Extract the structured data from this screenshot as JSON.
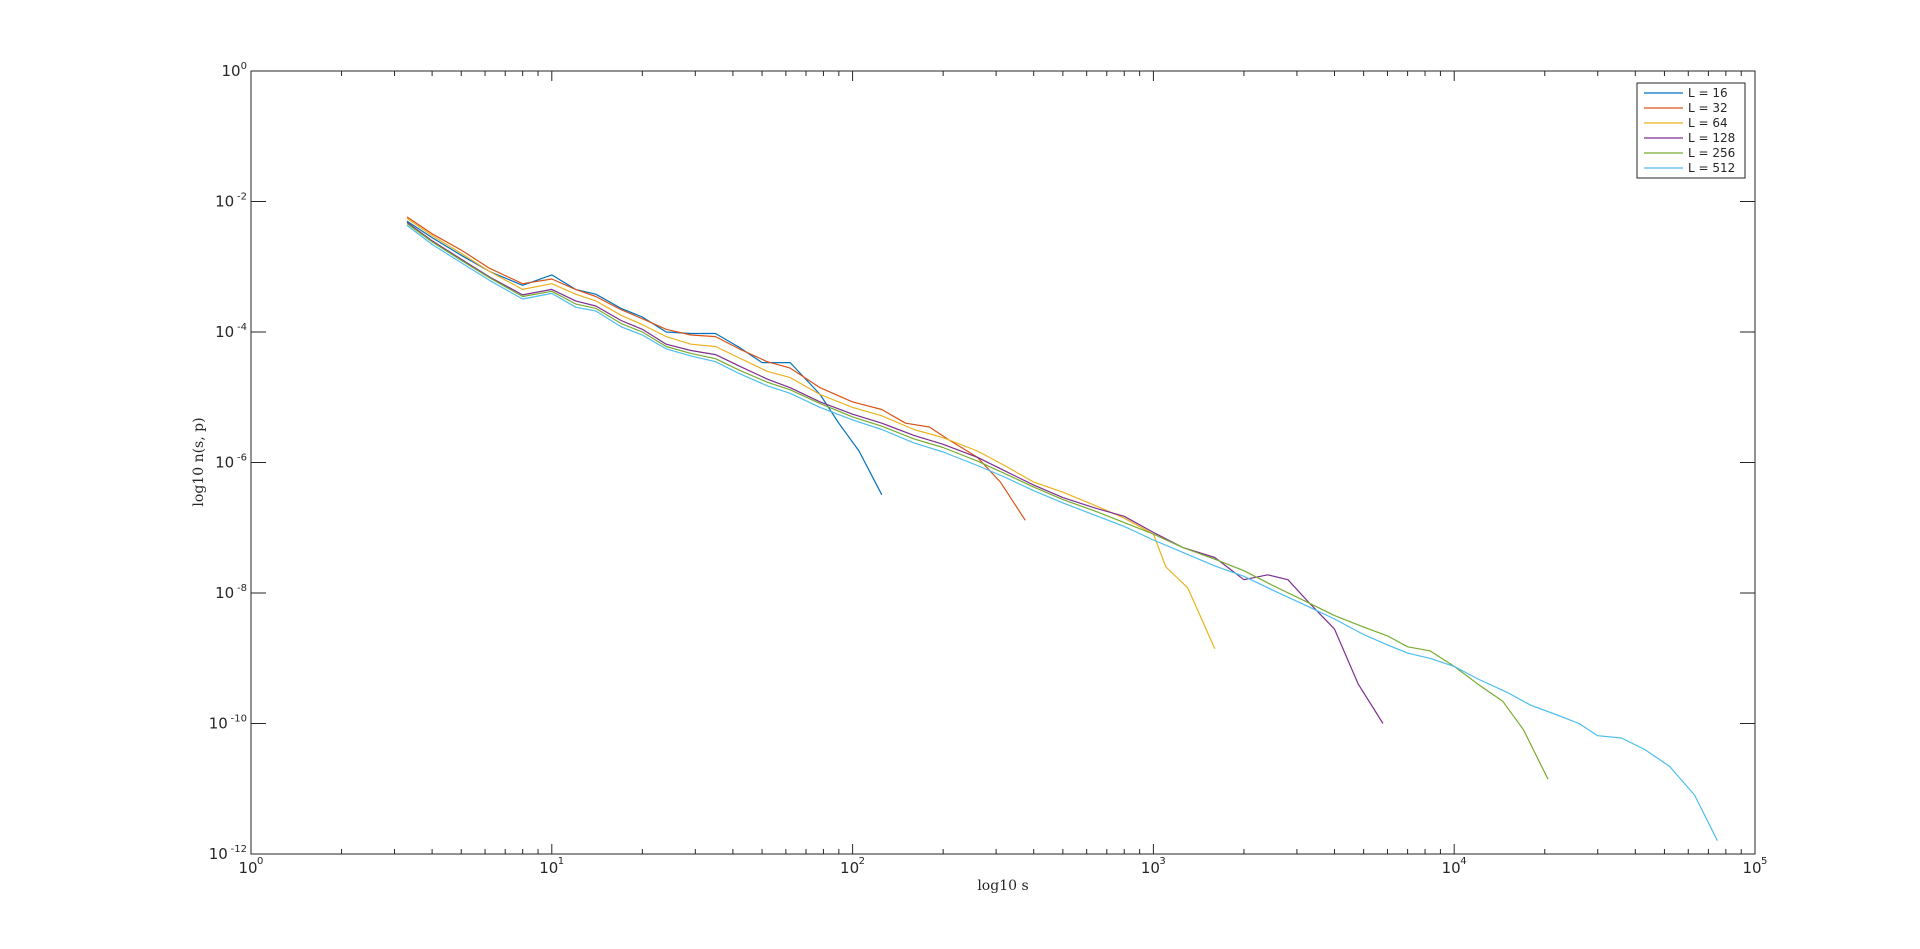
{
  "chart_data": {
    "type": "line",
    "title": "",
    "xlabel": "log10 s",
    "ylabel": "log10 n(s, p)",
    "xscale": "log",
    "yscale": "log",
    "xlim": [
      1,
      100000
    ],
    "ylim": [
      1e-12,
      1
    ],
    "x_ticks": [
      {
        "value": 1,
        "base": "10",
        "exp": "0"
      },
      {
        "value": 10,
        "base": "10",
        "exp": "1"
      },
      {
        "value": 100,
        "base": "10",
        "exp": "2"
      },
      {
        "value": 1000,
        "base": "10",
        "exp": "3"
      },
      {
        "value": 10000,
        "base": "10",
        "exp": "4"
      },
      {
        "value": 100000,
        "base": "10",
        "exp": "5"
      }
    ],
    "y_ticks": [
      {
        "value": 1,
        "base": "10",
        "exp": "0"
      },
      {
        "value": 0.01,
        "base": "10",
        "exp": "-2"
      },
      {
        "value": 0.0001,
        "base": "10",
        "exp": "-4"
      },
      {
        "value": 1e-06,
        "base": "10",
        "exp": "-6"
      },
      {
        "value": 1e-08,
        "base": "10",
        "exp": "-8"
      },
      {
        "value": 1e-10,
        "base": "10",
        "exp": "-10"
      },
      {
        "value": 1e-12,
        "base": "10",
        "exp": "-12"
      }
    ],
    "grid": false,
    "legend_position": "top-right",
    "series": [
      {
        "name": "L = 16",
        "color": "#0072BD",
        "x": [
          3.3,
          4,
          5,
          6.2,
          8,
          10,
          12,
          14,
          17,
          20,
          24,
          29,
          35,
          42,
          50,
          62,
          78,
          90,
          105,
          125
        ],
        "y": [
          0.005,
          0.0028,
          0.0015,
          0.00085,
          0.00052,
          0.00075,
          0.00045,
          0.00038,
          0.00023,
          0.00017,
          0.0001,
          9.5e-05,
          9.5e-05,
          5.8e-05,
          3.4e-05,
          3.4e-05,
          1.1e-05,
          4e-06,
          1.5e-06,
          3.2e-07
        ]
      },
      {
        "name": "L = 32",
        "color": "#D95319",
        "x": [
          3.3,
          4,
          5,
          6.2,
          8,
          10,
          12,
          14,
          17,
          20,
          24,
          29,
          35,
          42,
          52,
          62,
          78,
          100,
          125,
          150,
          180,
          210,
          260,
          310,
          375
        ],
        "y": [
          0.0058,
          0.0032,
          0.0018,
          0.00095,
          0.00055,
          0.00065,
          0.00045,
          0.00035,
          0.00022,
          0.00016,
          0.00011,
          9e-05,
          8.5e-05,
          5.5e-05,
          3.5e-05,
          2.8e-05,
          1.4e-05,
          8.5e-06,
          6.5e-06,
          4e-06,
          3.5e-06,
          2.2e-06,
          1.2e-06,
          5e-07,
          1.3e-07
        ]
      },
      {
        "name": "L = 64",
        "color": "#EDB120",
        "x": [
          3.3,
          4,
          5,
          6.2,
          8,
          10,
          12,
          14,
          17,
          20,
          24,
          29,
          35,
          42,
          52,
          62,
          78,
          100,
          125,
          160,
          200,
          260,
          320,
          400,
          500,
          640,
          800,
          1000,
          1100,
          1300,
          1600
        ],
        "y": [
          0.0055,
          0.003,
          0.0016,
          0.00085,
          0.00045,
          0.00055,
          0.00038,
          0.0003,
          0.00018,
          0.00013,
          8.5e-05,
          6.5e-05,
          6e-05,
          4e-05,
          2.5e-05,
          2e-05,
          1.1e-05,
          7e-06,
          5.2e-06,
          3.2e-06,
          2.4e-06,
          1.5e-06,
          9e-07,
          5e-07,
          3.5e-07,
          2.2e-07,
          1.4e-07,
          8e-08,
          2.5e-08,
          1.2e-08,
          1.4e-09
        ]
      },
      {
        "name": "L = 128",
        "color": "#7E2F8E",
        "x": [
          3.3,
          4,
          5,
          6.2,
          8,
          10,
          12,
          14,
          17,
          20,
          24,
          29,
          35,
          42,
          52,
          62,
          78,
          100,
          125,
          160,
          200,
          260,
          320,
          400,
          500,
          640,
          800,
          1000,
          1250,
          1600,
          2000,
          2400,
          2800,
          3300,
          4000,
          4800,
          5800
        ],
        "y": [
          0.0048,
          0.0025,
          0.0013,
          0.0007,
          0.00037,
          0.00045,
          0.0003,
          0.00025,
          0.00015,
          0.00011,
          6.5e-05,
          5.2e-05,
          4.5e-05,
          3e-05,
          1.9e-05,
          1.4e-05,
          8.5e-06,
          5.5e-06,
          4e-06,
          2.6e-06,
          1.9e-06,
          1.2e-06,
          7.5e-07,
          4.5e-07,
          2.9e-07,
          2e-07,
          1.5e-07,
          8.5e-08,
          5e-08,
          3.5e-08,
          1.6e-08,
          1.9e-08,
          1.6e-08,
          7e-09,
          2.8e-09,
          4e-10,
          1e-10
        ]
      },
      {
        "name": "L = 256",
        "color": "#77AC30",
        "x": [
          3.3,
          4,
          5,
          6.2,
          8,
          10,
          12,
          14,
          17,
          20,
          24,
          29,
          35,
          42,
          52,
          62,
          78,
          100,
          125,
          160,
          200,
          260,
          320,
          400,
          500,
          640,
          800,
          1000,
          1250,
          1600,
          2000,
          2500,
          3200,
          4000,
          5000,
          6000,
          7000,
          8300,
          10000,
          12000,
          14500,
          17000,
          20500
        ],
        "y": [
          0.0046,
          0.0024,
          0.00125,
          0.00068,
          0.00035,
          0.00042,
          0.00027,
          0.00023,
          0.000135,
          0.0001,
          6e-05,
          4.7e-05,
          3.9e-05,
          2.6e-05,
          1.7e-05,
          1.3e-05,
          8e-06,
          5e-06,
          3.6e-06,
          2.3e-06,
          1.7e-06,
          1.05e-06,
          6.8e-07,
          4.2e-07,
          2.7e-07,
          1.8e-07,
          1.2e-07,
          8e-08,
          5e-08,
          3.3e-08,
          2.2e-08,
          1.3e-08,
          7.5e-09,
          4.5e-09,
          3e-09,
          2.2e-09,
          1.5e-09,
          1.3e-09,
          7.5e-10,
          4e-10,
          2.2e-10,
          8e-11,
          1.4e-11
        ]
      },
      {
        "name": "L = 512",
        "color": "#4DBEEE",
        "x": [
          3.3,
          4,
          5,
          6.2,
          8,
          10,
          12,
          14,
          17,
          20,
          24,
          29,
          35,
          42,
          52,
          62,
          78,
          100,
          125,
          160,
          200,
          260,
          320,
          400,
          500,
          640,
          800,
          1000,
          1250,
          1600,
          2000,
          2500,
          3200,
          4000,
          5000,
          6000,
          7000,
          8300,
          10000,
          12000,
          15000,
          18000,
          22000,
          26000,
          30000,
          36000,
          43000,
          52000,
          63000,
          75000
        ],
        "y": [
          0.0043,
          0.0022,
          0.00115,
          0.00062,
          0.00032,
          0.00039,
          0.00024,
          0.00021,
          0.00012,
          9e-05,
          5.5e-05,
          4.3e-05,
          3.5e-05,
          2.3e-05,
          1.5e-05,
          1.15e-05,
          7e-06,
          4.5e-06,
          3.2e-06,
          2e-06,
          1.45e-06,
          9e-07,
          6e-07,
          3.7e-07,
          2.4e-07,
          1.55e-07,
          1.05e-07,
          6.5e-08,
          4.2e-08,
          2.6e-08,
          1.8e-08,
          1.1e-08,
          6.5e-09,
          4e-09,
          2.3e-09,
          1.6e-09,
          1.2e-09,
          1e-09,
          7.5e-10,
          4.8e-10,
          3e-10,
          1.9e-10,
          1.35e-10,
          1e-10,
          6.5e-11,
          6e-11,
          4e-11,
          2.2e-11,
          8e-12,
          1.6e-12
        ]
      }
    ]
  },
  "colors": {
    "axis": "#262626",
    "background": "#ffffff"
  }
}
